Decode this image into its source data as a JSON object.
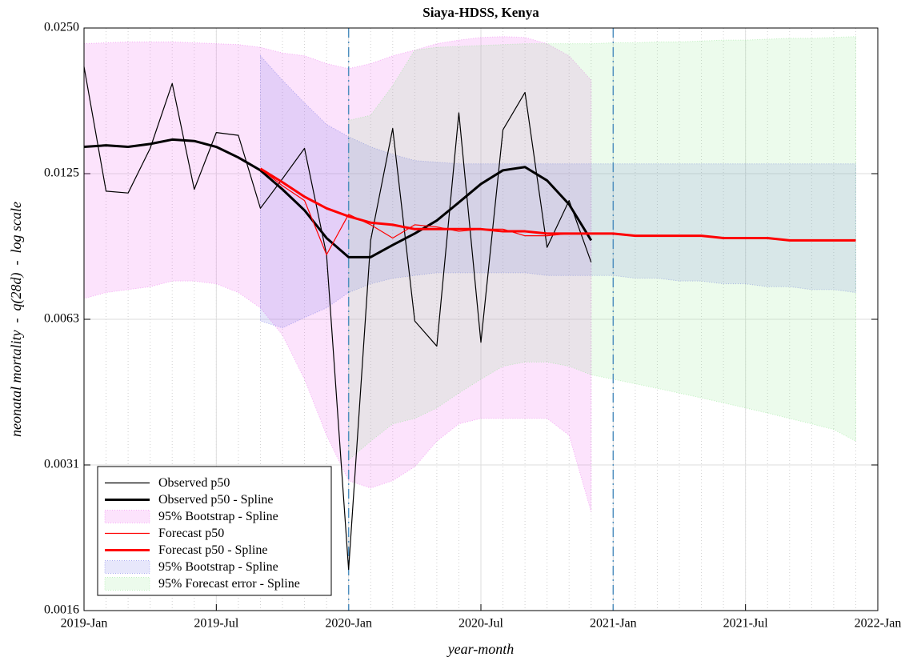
{
  "chart_data": {
    "type": "line",
    "title": "Siaya-HDSS, Kenya",
    "xlabel": "year-month",
    "ylabel": "neonatal mortality  -  q(28d)  -  log scale",
    "yscale": "log",
    "grid": true,
    "minor_grid": true,
    "legend_loc": "lower left",
    "xlim": [
      "2019-01",
      "2022-01"
    ],
    "xticks": [
      {
        "value": "2019-01",
        "label": "2019-Jan"
      },
      {
        "value": "2019-07",
        "label": "2019-Jul"
      },
      {
        "value": "2020-01",
        "label": "2020-Jan"
      },
      {
        "value": "2020-07",
        "label": "2020-Jul"
      },
      {
        "value": "2021-01",
        "label": "2021-Jan"
      },
      {
        "value": "2021-07",
        "label": "2021-Jul"
      },
      {
        "value": "2022-01",
        "label": "2022-Jan"
      }
    ],
    "ylim": [
      0.0015625,
      0.025
    ],
    "yticks": [
      {
        "value": 0.0015625,
        "label": "0.0016"
      },
      {
        "value": 0.003125,
        "label": "0.0031"
      },
      {
        "value": 0.00625,
        "label": "0.0063"
      },
      0.0125,
      {
        "value": 0.025,
        "label": "0.0250"
      }
    ],
    "vlines": [
      "2020-01",
      "2021-01"
    ],
    "vline_color": "#4f8fbf",
    "series": [
      {
        "name": "Observed p50",
        "kind": "line",
        "color": "#000000",
        "width": 1.2,
        "x": [
          "2019-01",
          "2019-02",
          "2019-03",
          "2019-04",
          "2019-05",
          "2019-06",
          "2019-07",
          "2019-08",
          "2019-09",
          "2019-10",
          "2019-11",
          "2019-12",
          "2020-01",
          "2020-02",
          "2020-03",
          "2020-04",
          "2020-05",
          "2020-06",
          "2020-07",
          "2020-08",
          "2020-09",
          "2020-10",
          "2020-11",
          "2020-12"
        ],
        "values": [
          0.0208,
          0.0115,
          0.0114,
          0.0141,
          0.0192,
          0.0116,
          0.0152,
          0.015,
          0.0106,
          0.0122,
          0.0141,
          0.0085,
          0.0019,
          0.0091,
          0.0155,
          0.0062,
          0.0055,
          0.0167,
          0.0056,
          0.0154,
          0.0184,
          0.0088,
          0.011,
          0.0082
        ]
      },
      {
        "name": "Observed p50 - Spline",
        "kind": "line",
        "color": "#000000",
        "width": 3,
        "x": [
          "2019-01",
          "2019-02",
          "2019-03",
          "2019-04",
          "2019-05",
          "2019-06",
          "2019-07",
          "2019-08",
          "2019-09",
          "2019-10",
          "2019-11",
          "2019-12",
          "2020-01",
          "2020-02",
          "2020-03",
          "2020-04",
          "2020-05",
          "2020-06",
          "2020-07",
          "2020-08",
          "2020-09",
          "2020-10",
          "2020-11",
          "2020-12"
        ],
        "values": [
          0.0142,
          0.0143,
          0.0142,
          0.0144,
          0.0147,
          0.0146,
          0.0142,
          0.0135,
          0.0127,
          0.0116,
          0.0105,
          0.0092,
          0.0084,
          0.0084,
          0.0089,
          0.0094,
          0.01,
          0.0109,
          0.0119,
          0.0127,
          0.0129,
          0.0121,
          0.0108,
          0.0091
        ]
      },
      {
        "name": "95% Bootstrap - Spline",
        "kind": "band",
        "color": "#ee66ee",
        "opacity": 0.18,
        "x": [
          "2019-01",
          "2019-02",
          "2019-03",
          "2019-04",
          "2019-05",
          "2019-06",
          "2019-07",
          "2019-08",
          "2019-09",
          "2019-10",
          "2019-11",
          "2019-12",
          "2020-01",
          "2020-02",
          "2020-03",
          "2020-04",
          "2020-05",
          "2020-06",
          "2020-07",
          "2020-08",
          "2020-09",
          "2020-10",
          "2020-11",
          "2020-12"
        ],
        "upper": [
          0.0232,
          0.0233,
          0.0234,
          0.0234,
          0.0234,
          0.0233,
          0.0232,
          0.0231,
          0.0228,
          0.0222,
          0.0219,
          0.0211,
          0.0206,
          0.0211,
          0.0219,
          0.0225,
          0.0232,
          0.0236,
          0.0239,
          0.024,
          0.0239,
          0.0232,
          0.0219,
          0.0195
        ],
        "lower": [
          0.0069,
          0.0071,
          0.0072,
          0.0073,
          0.0075,
          0.0075,
          0.0074,
          0.0071,
          0.0066,
          0.0058,
          0.0047,
          0.0036,
          0.0029,
          0.0028,
          0.0029,
          0.0031,
          0.0035,
          0.0038,
          0.0039,
          0.0039,
          0.0039,
          0.0039,
          0.0036,
          0.0025
        ]
      },
      {
        "name": "Forecast p50",
        "kind": "line",
        "color": "#ff0000",
        "width": 1.2,
        "x": [
          "2019-09",
          "2019-10",
          "2019-11",
          "2019-12",
          "2020-01",
          "2020-02",
          "2020-03",
          "2020-04",
          "2020-05",
          "2020-06",
          "2020-07",
          "2020-08",
          "2020-09",
          "2020-10",
          "2020-11",
          "2020-12"
        ],
        "values": [
          0.0128,
          0.0118,
          0.011,
          0.0085,
          0.0103,
          0.0098,
          0.0092,
          0.0098,
          0.0097,
          0.0095,
          0.0096,
          0.0096,
          0.0093,
          0.0093,
          0.0094,
          0.0094
        ]
      },
      {
        "name": "Forecast p50 - Spline",
        "kind": "line",
        "color": "#ff0000",
        "width": 3,
        "x": [
          "2019-09",
          "2019-10",
          "2019-11",
          "2019-12",
          "2020-01",
          "2020-02",
          "2020-03",
          "2020-04",
          "2020-05",
          "2020-06",
          "2020-07",
          "2020-08",
          "2020-09",
          "2020-10",
          "2020-11",
          "2020-12",
          "2021-01",
          "2021-02",
          "2021-03",
          "2021-04",
          "2021-05",
          "2021-06",
          "2021-07",
          "2021-08",
          "2021-09",
          "2021-10",
          "2021-11",
          "2021-12"
        ],
        "values": [
          0.0128,
          0.012,
          0.0112,
          0.0106,
          0.0102,
          0.0099,
          0.0098,
          0.0096,
          0.0096,
          0.0096,
          0.0096,
          0.0095,
          0.0095,
          0.0094,
          0.0094,
          0.0094,
          0.0094,
          0.0093,
          0.0093,
          0.0093,
          0.0093,
          0.0092,
          0.0092,
          0.0092,
          0.0091,
          0.0091,
          0.0091,
          0.0091
        ]
      },
      {
        "name": "95% Bootstrap - Spline",
        "kind": "band",
        "color": "#6a6ae6",
        "opacity": 0.16,
        "x": [
          "2019-09",
          "2019-10",
          "2019-11",
          "2019-12",
          "2020-01",
          "2020-02",
          "2020-03",
          "2020-04",
          "2020-05",
          "2020-06",
          "2020-07",
          "2020-08",
          "2020-09",
          "2020-10",
          "2020-11",
          "2020-12",
          "2021-01",
          "2021-02",
          "2021-03",
          "2021-04",
          "2021-05",
          "2021-06",
          "2021-07",
          "2021-08",
          "2021-09",
          "2021-10",
          "2021-11",
          "2021-12"
        ],
        "upper": [
          0.0219,
          0.0195,
          0.0175,
          0.0158,
          0.0149,
          0.0142,
          0.0137,
          0.0133,
          0.0132,
          0.0131,
          0.0131,
          0.0131,
          0.0131,
          0.0131,
          0.0131,
          0.0131,
          0.0131,
          0.0131,
          0.0131,
          0.0131,
          0.0131,
          0.0131,
          0.0131,
          0.0131,
          0.0131,
          0.0131,
          0.0131,
          0.0131
        ],
        "lower": [
          0.0062,
          0.006,
          0.0063,
          0.0066,
          0.0071,
          0.0074,
          0.0076,
          0.0077,
          0.0078,
          0.0078,
          0.0078,
          0.0078,
          0.0078,
          0.0077,
          0.0077,
          0.0077,
          0.0077,
          0.0076,
          0.0076,
          0.0075,
          0.0075,
          0.0074,
          0.0074,
          0.0073,
          0.0073,
          0.0072,
          0.0072,
          0.0071
        ]
      },
      {
        "name": "95% Forecast error - Spline",
        "kind": "band",
        "color": "#88e888",
        "opacity": 0.16,
        "x": [
          "2020-01",
          "2020-02",
          "2020-03",
          "2020-04",
          "2020-05",
          "2020-06",
          "2020-07",
          "2020-08",
          "2020-09",
          "2020-10",
          "2020-11",
          "2020-12",
          "2021-01",
          "2021-02",
          "2021-03",
          "2021-04",
          "2021-05",
          "2021-06",
          "2021-07",
          "2021-08",
          "2021-09",
          "2021-10",
          "2021-11",
          "2021-12"
        ],
        "upper": [
          0.0161,
          0.0165,
          0.019,
          0.0225,
          0.0228,
          0.0229,
          0.023,
          0.0231,
          0.0232,
          0.0232,
          0.0232,
          0.0232,
          0.0233,
          0.0233,
          0.0234,
          0.0234,
          0.0235,
          0.0236,
          0.0236,
          0.0237,
          0.0238,
          0.0238,
          0.0239,
          0.024
        ],
        "lower": [
          0.0032,
          0.0035,
          0.0038,
          0.0039,
          0.0041,
          0.0044,
          0.0047,
          0.005,
          0.0051,
          0.0051,
          0.005,
          0.0048,
          0.0047,
          0.0046,
          0.0045,
          0.0044,
          0.0043,
          0.0042,
          0.0041,
          0.004,
          0.0039,
          0.0038,
          0.0037,
          0.0035
        ]
      }
    ]
  }
}
